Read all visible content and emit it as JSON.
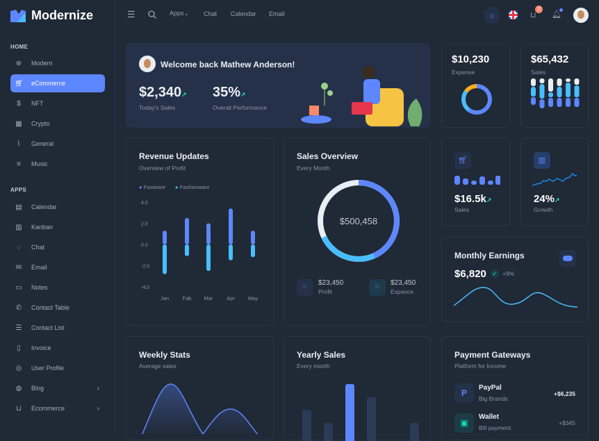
{
  "app": {
    "name": "Modernize"
  },
  "sidebar": {
    "sections": [
      {
        "label": "HOME"
      },
      {
        "label": "APPS"
      }
    ],
    "items": [
      {
        "label": "Modern",
        "icon": "aperture-icon"
      },
      {
        "label": "eCommerce",
        "icon": "cart-icon",
        "active": true
      },
      {
        "label": "NFT",
        "icon": "dollar-icon"
      },
      {
        "label": "Crypto",
        "icon": "cpu-icon"
      },
      {
        "label": "General",
        "icon": "activity-icon"
      },
      {
        "label": "Music",
        "icon": "playlist-icon"
      },
      {
        "label": "Calendar",
        "icon": "calendar-icon"
      },
      {
        "label": "Kanban",
        "icon": "kanban-icon"
      },
      {
        "label": "Chat",
        "icon": "chat-icon"
      },
      {
        "label": "Email",
        "icon": "mail-icon"
      },
      {
        "label": "Notes",
        "icon": "notes-icon"
      },
      {
        "label": "Contact Table",
        "icon": "phone-icon"
      },
      {
        "label": "Contact List",
        "icon": "list-icon"
      },
      {
        "label": "Invoice",
        "icon": "file-icon"
      },
      {
        "label": "User Profile",
        "icon": "user-icon"
      },
      {
        "label": "Blog",
        "icon": "blog-icon",
        "chevron": true
      },
      {
        "label": "Ecommerce",
        "icon": "basket-icon",
        "chevron": true
      }
    ]
  },
  "header": {
    "links": [
      "Apps",
      "Chat",
      "Calendar",
      "Email"
    ],
    "apps_chevron": "⌄",
    "cart_badge": "2"
  },
  "welcome": {
    "title": "Welcome back Mathew Anderson!",
    "stat1": {
      "value": "$2,340",
      "label": "Today's Sales"
    },
    "stat2": {
      "value": "35%",
      "label": "Overall Performance"
    }
  },
  "expense": {
    "value": "$10,230",
    "label": "Expense",
    "donut": [
      {
        "color": "#5d87ff",
        "pct": 60
      },
      {
        "color": "#49beff",
        "pct": 25
      },
      {
        "color": "#ffae1f",
        "pct": 15
      }
    ]
  },
  "sales_top": {
    "value": "$65,432",
    "label": "Sales"
  },
  "revenue": {
    "title": "Revenue Updates",
    "subtitle": "Overview of Profit",
    "legend": [
      "Footware",
      "Fashionware"
    ]
  },
  "chart_data": {
    "type": "bar",
    "categories": [
      "Jan",
      "Fab",
      "Mar",
      "Apr",
      "May"
    ],
    "yticks": [
      "4.0",
      "2.0",
      "0.0",
      "-2.0",
      "-4.0"
    ],
    "ylim": [
      -4,
      4
    ],
    "series": [
      {
        "name": "Footware",
        "color": "#5d87ff",
        "values": [
          1.3,
          2.5,
          2.0,
          3.4,
          1.3
        ]
      },
      {
        "name": "Fashionware",
        "color": "#49beff",
        "values": [
          -2.8,
          -1.1,
          -2.5,
          -1.5,
          -1.2
        ]
      }
    ]
  },
  "sales_overview": {
    "title": "Sales Overview",
    "subtitle": "Every Month",
    "total": "$500,458",
    "profit": {
      "value": "$23,450",
      "label": "Profit"
    },
    "expense": {
      "value": "$23,450",
      "label": "Expance"
    }
  },
  "small_sales": {
    "value": "$16.5k",
    "label": "Sales"
  },
  "growth": {
    "value": "24%",
    "label": "Growth"
  },
  "monthly": {
    "title": "Monthly Earnings",
    "value": "$6,820",
    "change": "+9%"
  },
  "weekly": {
    "title": "Weekly Stats",
    "subtitle": "Average sales"
  },
  "yearly": {
    "title": "Yearly Sales",
    "subtitle": "Every month"
  },
  "payments": {
    "title": "Payment Gateways",
    "subtitle": "Platform for Income",
    "items": [
      {
        "name": "PayPal",
        "sub": "Big Brands",
        "amount": "+$6,235",
        "icon": "paypal-icon"
      },
      {
        "name": "Wallet",
        "sub": "Bill payment",
        "amount": "+$345",
        "icon": "wallet-icon"
      }
    ]
  }
}
